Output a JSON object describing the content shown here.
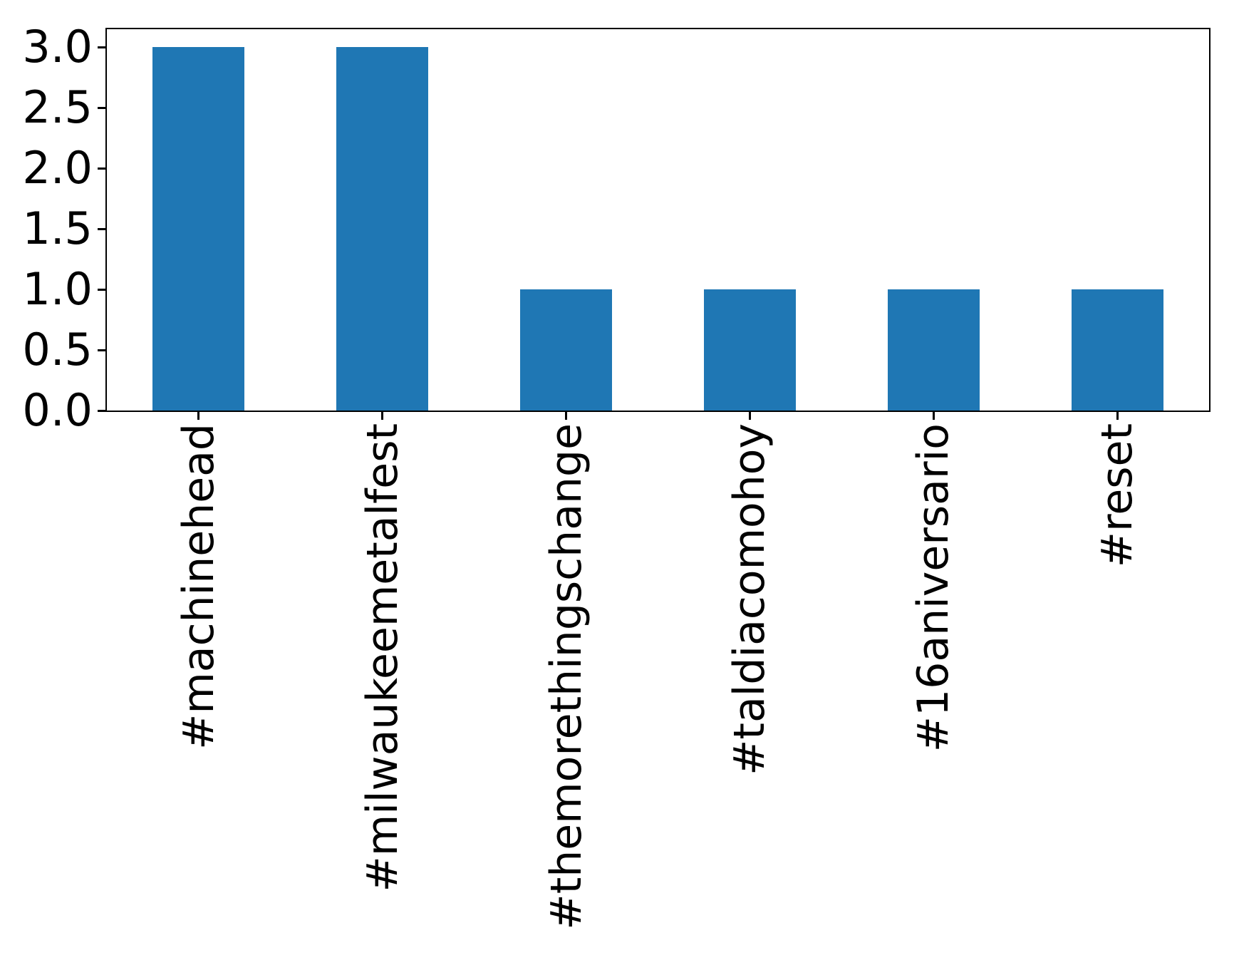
{
  "chart_data": {
    "type": "bar",
    "title": "",
    "xlabel": "",
    "ylabel": "",
    "categories": [
      "#machinehead",
      "#milwaukeemetalfest",
      "#themorethingschange",
      "#taldiacomohoy",
      "#16aniversario",
      "#reset"
    ],
    "values": [
      3,
      3,
      1,
      1,
      1,
      1
    ],
    "ytick_values": [
      0.0,
      0.5,
      1.0,
      1.5,
      2.0,
      2.5,
      3.0
    ],
    "ytick_labels": [
      "0.0",
      "0.5",
      "1.0",
      "1.5",
      "2.0",
      "2.5",
      "3.0"
    ],
    "ylim": [
      0,
      3.15
    ],
    "xtick_label_rotation_deg": 90,
    "bar_width_fraction": 0.5,
    "bar_color": "#1f77b4",
    "axis_color": "#000000",
    "tick_label_color": "#000000",
    "background_color": "#ffffff",
    "grid": false,
    "legend_position": "none"
  }
}
